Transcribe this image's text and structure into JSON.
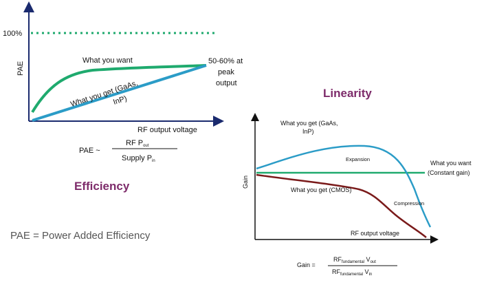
{
  "efficiency": {
    "title": "Efficiency",
    "y_label": "PAE",
    "x_label": "RF output voltage",
    "hundred_label": "100%",
    "want_label": "What you want",
    "get_label_line1": "What you get (GaAs,",
    "get_label_line2": "InP)",
    "peak_line1": "50-60% at",
    "peak_line2": "peak",
    "peak_line3": "output",
    "formula": {
      "lhs": "PAE ~",
      "num_main": "RF P",
      "num_sub": "out",
      "den_main": "Supply P",
      "den_sub": "in"
    },
    "caption": "PAE = Power Added Efficiency"
  },
  "linearity": {
    "title": "Linearity",
    "y_label": "Gain",
    "x_label": "RF output voltage",
    "get_label_line1": "What you get (GaAs,",
    "get_label_line2": "InP)",
    "expansion": "Expansion",
    "want_line1": "What you want",
    "want_line2": "(Constant gain)",
    "cmos_label": "What you get (CMOS)",
    "compression": "Compression",
    "formula": {
      "lhs": "Gain =",
      "num_main": "RF",
      "num_sub": "fundamental",
      "num_main2": "V",
      "num_sub2": "out",
      "den_main": "RF",
      "den_sub": "fundamental",
      "den_main2": "V",
      "den_sub2": "in"
    }
  },
  "colors": {
    "green": "#1faa6e",
    "teal_blue": "#2b9cc7",
    "dark_red": "#7a1a1a",
    "axis": "#1a2a6e",
    "title_purple": "#7d2b6a"
  }
}
